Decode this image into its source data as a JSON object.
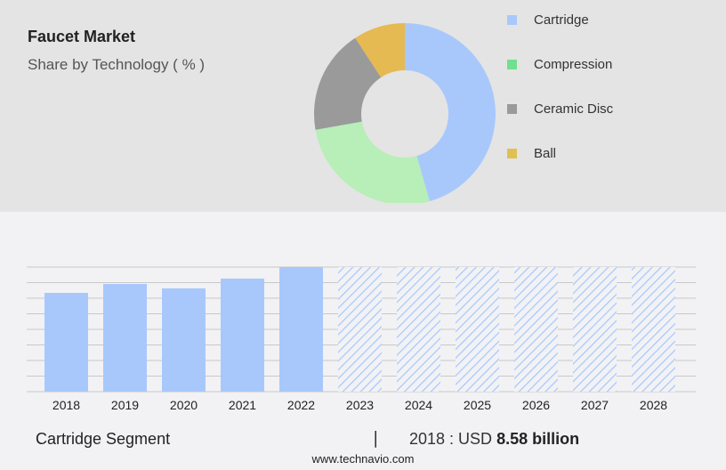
{
  "header": {
    "title": "Faucet Market",
    "subtitle": "Share by Technology ( % )"
  },
  "chart_data": [
    {
      "type": "pie",
      "variant": "donut",
      "categories": [
        "Cartridge",
        "Compression",
        "Ceramic Disc",
        "Ball"
      ],
      "values": [
        45.6,
        26.6,
        18.6,
        9.2
      ],
      "colors": [
        "#a8c8fc",
        "#b8eeb8",
        "#9a9a9a",
        "#e6ba52"
      ],
      "legend_colors": [
        "#a8c8fc",
        "#6ee08e",
        "#9a9a9a",
        "#e0c050"
      ],
      "legend_position": "right"
    },
    {
      "type": "bar",
      "categories": [
        "2018",
        "2019",
        "2020",
        "2021",
        "2022",
        "2023",
        "2024",
        "2025",
        "2026",
        "2027",
        "2028"
      ],
      "values": [
        8.58,
        9.35,
        8.97,
        9.82,
        10.82,
        null,
        null,
        null,
        null,
        null,
        null
      ],
      "forecast_from": "2023",
      "bar_color": "#a8c8fc",
      "grid": true,
      "ylim": [
        0,
        10.82
      ]
    }
  ],
  "footer": {
    "segment": "Cartridge Segment",
    "separator": "|",
    "year_label": "2018 : USD",
    "value": "8.58 billion",
    "site": "www.technavio.com"
  }
}
